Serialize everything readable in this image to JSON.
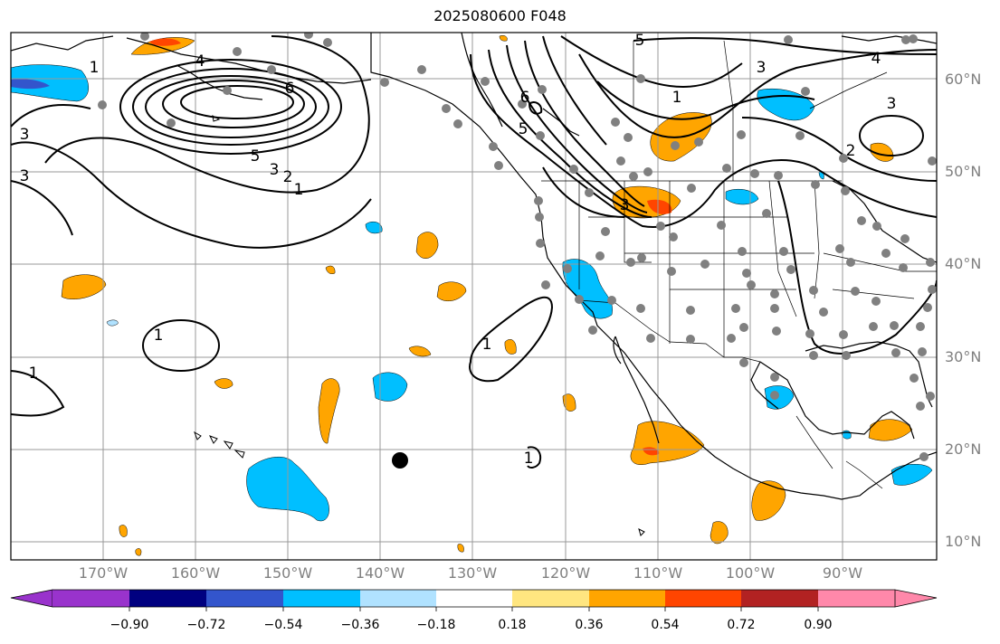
{
  "title": "2025080600 F048",
  "lat_labels": [
    "60°N",
    "50°N",
    "40°N",
    "30°N",
    "20°N",
    "10°N"
  ],
  "lon_labels": [
    "170°W",
    "160°W",
    "150°W",
    "140°W",
    "130°W",
    "120°W",
    "110°W",
    "100°W",
    "90°W"
  ],
  "colorbar": {
    "ticks": [
      "−0.90",
      "−0.72",
      "−0.54",
      "−0.36",
      "−0.18",
      "0.18",
      "0.36",
      "0.54",
      "0.72",
      "0.90"
    ],
    "colors": [
      "#9933cc",
      "#000080",
      "#3355cc",
      "#00bfff",
      "#b0e2ff",
      "#ffffff",
      "#ffe680",
      "#ffa500",
      "#ff4500",
      "#b22222",
      "#ff88aa"
    ]
  },
  "contour_labels": [
    "1",
    "4",
    "6",
    "3",
    "5",
    "3",
    "2",
    "1",
    "6",
    "5",
    "1",
    "3",
    "4",
    "5",
    "3",
    "2",
    "1",
    "1",
    "1",
    "1",
    "3",
    "3"
  ],
  "colors": {
    "warm": "#ffa500",
    "cool": "#00bfff",
    "hot": "#ff4500",
    "grid": "#999999",
    "station": "#808080"
  }
}
